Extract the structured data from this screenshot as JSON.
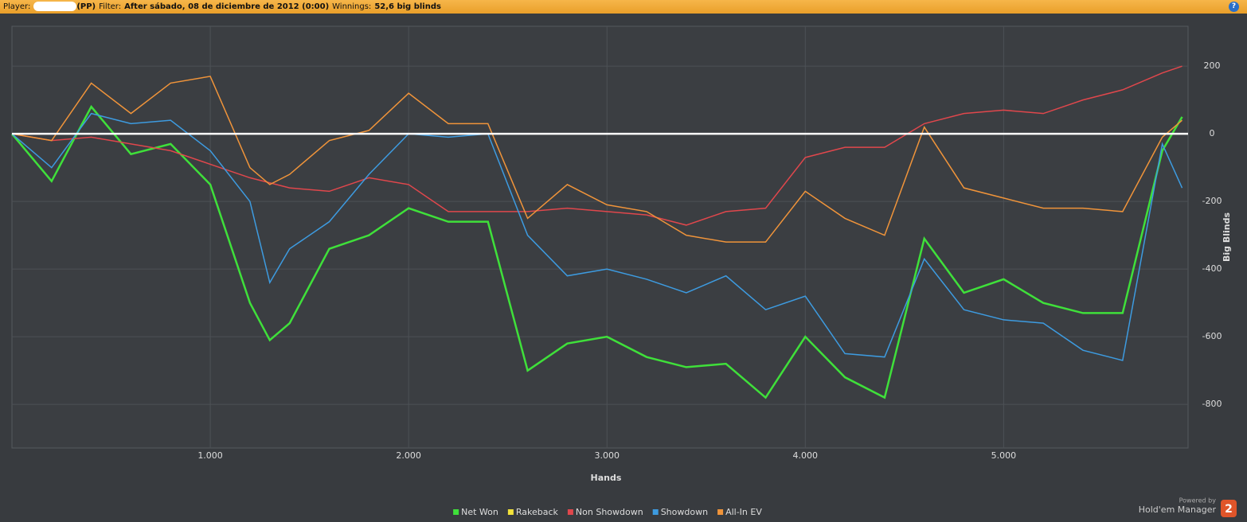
{
  "header": {
    "player_label": "Player:",
    "player_tag": "(PP)",
    "filter_label": "Filter:",
    "filter": "After sábado, 08 de diciembre de 2012 (0:00)",
    "winnings_label": "Winnings:",
    "winnings": "52,6 big blinds"
  },
  "footer": {
    "powered_by": "Powered by",
    "brand": "Hold'em Manager",
    "version": "2"
  },
  "chart_data": {
    "type": "line",
    "x_label": "Hands",
    "y_label": "Big Blinds",
    "x": [
      0,
      200,
      400,
      600,
      800,
      1000,
      1200,
      1300,
      1400,
      1600,
      1800,
      2000,
      2200,
      2400,
      2600,
      2800,
      3000,
      3200,
      3400,
      3600,
      3800,
      4000,
      4200,
      4400,
      4600,
      4800,
      5000,
      5200,
      5400,
      5600,
      5800,
      5900
    ],
    "series": [
      {
        "name": "Net Won",
        "color": "#3fe03a",
        "values": [
          0,
          -140,
          80,
          -60,
          -30,
          -150,
          -500,
          -610,
          -560,
          -340,
          -300,
          -220,
          -260,
          -260,
          -700,
          -620,
          -600,
          -660,
          -690,
          -680,
          -780,
          -600,
          -720,
          -780,
          -310,
          -470,
          -430,
          -500,
          -530,
          -530,
          -50,
          50
        ]
      },
      {
        "name": "Rakeback",
        "color": "#f2e23a",
        "values": [
          0,
          0,
          0,
          0,
          0,
          0,
          0,
          0,
          0,
          0,
          0,
          0,
          0,
          0,
          0,
          0,
          0,
          0,
          0,
          0,
          0,
          0,
          0,
          0,
          0,
          0,
          0,
          0,
          0,
          0,
          0,
          0
        ]
      },
      {
        "name": "Non Showdown",
        "color": "#e0474c",
        "values": [
          0,
          -20,
          -10,
          -30,
          -50,
          -90,
          -130,
          -145,
          -160,
          -170,
          -130,
          -150,
          -230,
          -230,
          -230,
          -220,
          -230,
          -240,
          -270,
          -230,
          -220,
          -70,
          -40,
          -40,
          30,
          60,
          70,
          60,
          100,
          130,
          180,
          200
        ]
      },
      {
        "name": "Showdown",
        "color": "#3d9be0",
        "values": [
          0,
          -100,
          60,
          30,
          40,
          -50,
          -200,
          -440,
          -340,
          -260,
          -120,
          0,
          -10,
          0,
          -300,
          -420,
          -400,
          -430,
          -470,
          -420,
          -520,
          -480,
          -650,
          -660,
          -370,
          -520,
          -550,
          -560,
          -640,
          -670,
          -30,
          -160
        ]
      },
      {
        "name": "All-In EV",
        "color": "#f0943a",
        "values": [
          0,
          -20,
          150,
          60,
          150,
          170,
          -100,
          -150,
          -120,
          -20,
          10,
          120,
          30,
          30,
          -250,
          -150,
          -210,
          -230,
          -300,
          -320,
          -320,
          -170,
          -250,
          -300,
          20,
          -160,
          -190,
          -220,
          -220,
          -230,
          -10,
          40
        ]
      }
    ],
    "xlim": [
      0,
      5930
    ],
    "ylim": [
      -929,
      318
    ],
    "xticks": [
      {
        "value": 1000,
        "label": "1.000"
      },
      {
        "value": 2000,
        "label": "2.000"
      },
      {
        "value": 3000,
        "label": "3.000"
      },
      {
        "value": 4000,
        "label": "4.000"
      },
      {
        "value": 5000,
        "label": "5.000"
      }
    ],
    "yticks": [
      200,
      0,
      -200,
      -400,
      -600,
      -800
    ],
    "grid": true,
    "zero_line": true,
    "legend": "bottom"
  }
}
